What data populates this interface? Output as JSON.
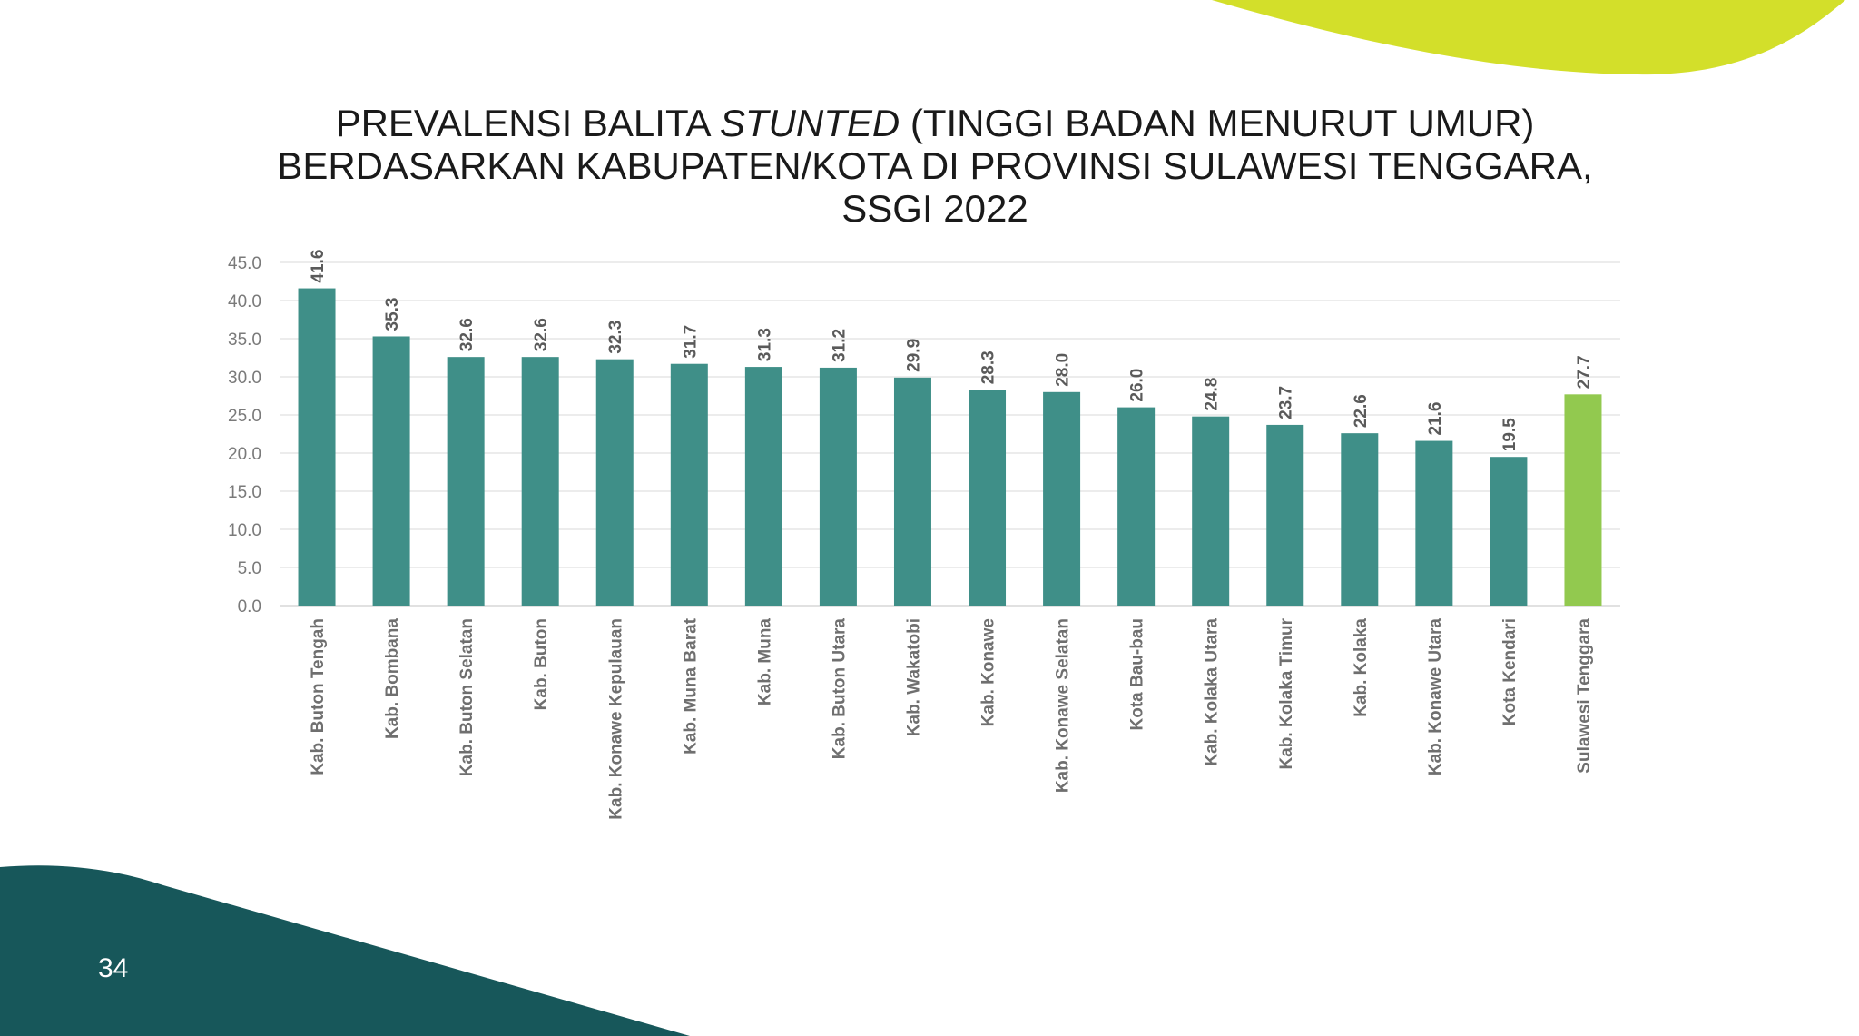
{
  "page": {
    "number": "34"
  },
  "colors": {
    "bar": "#3f8f88",
    "highlight_bar": "#92c94f",
    "deco_top": "#d3df2a",
    "deco_bottom": "#17575a",
    "axis_text": "#7a7a7a",
    "bar_label": "#5a5a5a",
    "category_text": "#6f6f6f",
    "grid": "#e1e1e1"
  },
  "chart_data": {
    "type": "bar",
    "title": {
      "line1_before": "PREVALENSI BALITA ",
      "line1_italic": "STUNTED",
      "line1_after": " (TINGGI BADAN MENURUT UMUR)",
      "line2": "BERDASARKAN KABUPATEN/KOTA DI PROVINSI SULAWESI TENGGARA,",
      "line3": "SSGI 2022"
    },
    "xlabel": "",
    "ylabel": "",
    "ylim": [
      0,
      45
    ],
    "yticks": [
      "0.0",
      "5.0",
      "10.0",
      "15.0",
      "20.0",
      "25.0",
      "30.0",
      "35.0",
      "40.0",
      "45.0"
    ],
    "grid": true,
    "legend": "none",
    "highlight_category": "Sulawesi Tenggara",
    "categories": [
      "Kab. Buton Tengah",
      "Kab. Bombana",
      "Kab. Buton Selatan",
      "Kab. Buton",
      "Kab. Konawe Kepulauan",
      "Kab. Muna Barat",
      "Kab. Muna",
      "Kab. Buton Utara",
      "Kab. Wakatobi",
      "Kab. Konawe",
      "Kab. Konawe Selatan",
      "Kota Bau-bau",
      "Kab. Kolaka Utara",
      "Kab. Kolaka Timur",
      "Kab. Kolaka",
      "Kab. Konawe Utara",
      "Kota Kendari",
      "Sulawesi Tenggara"
    ],
    "values": [
      41.6,
      35.3,
      32.6,
      32.6,
      32.3,
      31.7,
      31.3,
      31.2,
      29.9,
      28.3,
      28.0,
      26.0,
      24.8,
      23.7,
      22.6,
      21.6,
      19.5,
      27.7
    ],
    "value_labels": [
      "41.6",
      "35.3",
      "32.6",
      "32.6",
      "32.3",
      "31.7",
      "31.3",
      "31.2",
      "29.9",
      "28.3",
      "28.0",
      "26.0",
      "24.8",
      "23.7",
      "22.6",
      "21.6",
      "19.5",
      "27.7"
    ]
  }
}
